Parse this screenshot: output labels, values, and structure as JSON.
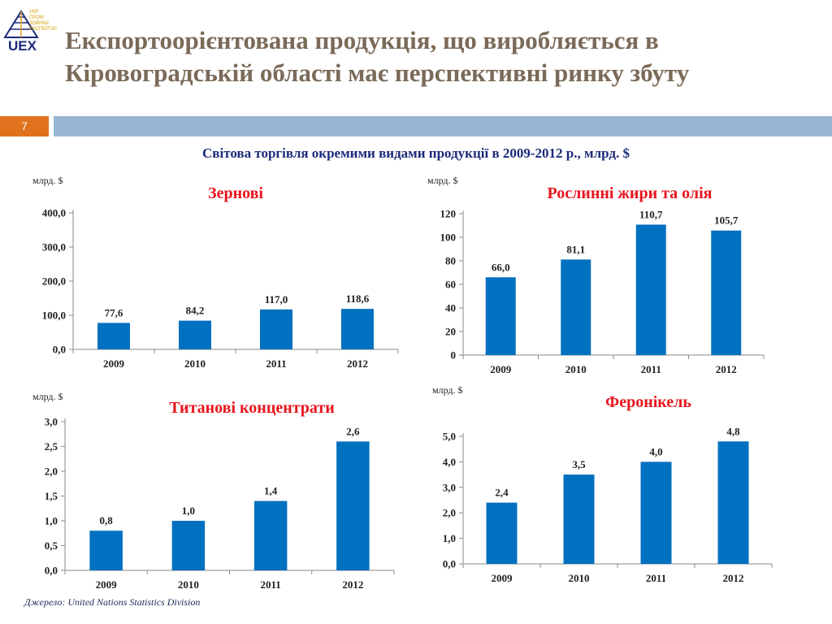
{
  "header": {
    "title": "Експортоорієнтована продукція, що виробляється в Кіровоградській області має перспективні ринку збуту",
    "slide_number": "7",
    "logo_text": "UEX",
    "logo_tagline": [
      "УКР",
      "ПРОМ",
      "ЗОВНІШ",
      "ЕКСПЕРТИЗА"
    ]
  },
  "subtitle": "Світова торгівля окремими видами продукції в 2009-2012 р., млрд. $",
  "source": "Джерело: United Nations Statistics Division",
  "colors": {
    "bar": "#0070c0",
    "title": "#7a6a58",
    "chart_title": "#e8151d",
    "subtitle": "#1b2a7a"
  },
  "chart_data": [
    {
      "type": "bar",
      "title": "Зернові",
      "unit_label": "млрд. $",
      "categories": [
        "2009",
        "2010",
        "2011",
        "2012"
      ],
      "values": [
        77.6,
        84.2,
        117.0,
        118.6
      ],
      "value_labels": [
        "77,6",
        "84,2",
        "117,0",
        "118,6"
      ],
      "yticks": [
        0,
        100,
        200,
        300,
        400
      ],
      "ytick_labels": [
        "0,0",
        "100,0",
        "200,0",
        "300,0",
        "400,0"
      ],
      "ylim": [
        0,
        400
      ],
      "grid": false
    },
    {
      "type": "bar",
      "title": "Рослинні жири та олія",
      "unit_label": "млрд. $",
      "categories": [
        "2009",
        "2010",
        "2011",
        "2012"
      ],
      "values": [
        66.0,
        81.1,
        110.7,
        105.7
      ],
      "value_labels": [
        "66,0",
        "81,1",
        "110,7",
        "105,7"
      ],
      "yticks": [
        0,
        20,
        40,
        60,
        80,
        100,
        120
      ],
      "ytick_labels": [
        "0",
        "20",
        "40",
        "60",
        "80",
        "100",
        "120"
      ],
      "ylim": [
        0,
        120
      ],
      "grid": false
    },
    {
      "type": "bar",
      "title": "Титанові концентрати",
      "unit_label": "млрд. $",
      "categories": [
        "2009",
        "2010",
        "2011",
        "2012"
      ],
      "values": [
        0.8,
        1.0,
        1.4,
        2.6
      ],
      "value_labels": [
        "0,8",
        "1,0",
        "1,4",
        "2,6"
      ],
      "yticks": [
        0,
        0.5,
        1,
        1.5,
        2,
        2.5,
        3
      ],
      "ytick_labels": [
        "0,0",
        "0,5",
        "1,0",
        "1,5",
        "2,0",
        "2,5",
        "3,0"
      ],
      "ylim": [
        0,
        3
      ],
      "grid": false
    },
    {
      "type": "bar",
      "title": "Феронікель",
      "unit_label": "млрд. $",
      "categories": [
        "2009",
        "2010",
        "2011",
        "2012"
      ],
      "values": [
        2.4,
        3.5,
        4.0,
        4.8
      ],
      "value_labels": [
        "2,4",
        "3,5",
        "4,0",
        "4,8"
      ],
      "yticks": [
        0,
        1,
        2,
        3,
        4,
        5
      ],
      "ytick_labels": [
        "0,0",
        "1,0",
        "2,0",
        "3,0",
        "4,0",
        "5,0"
      ],
      "ylim": [
        0,
        5
      ],
      "grid": false
    }
  ]
}
